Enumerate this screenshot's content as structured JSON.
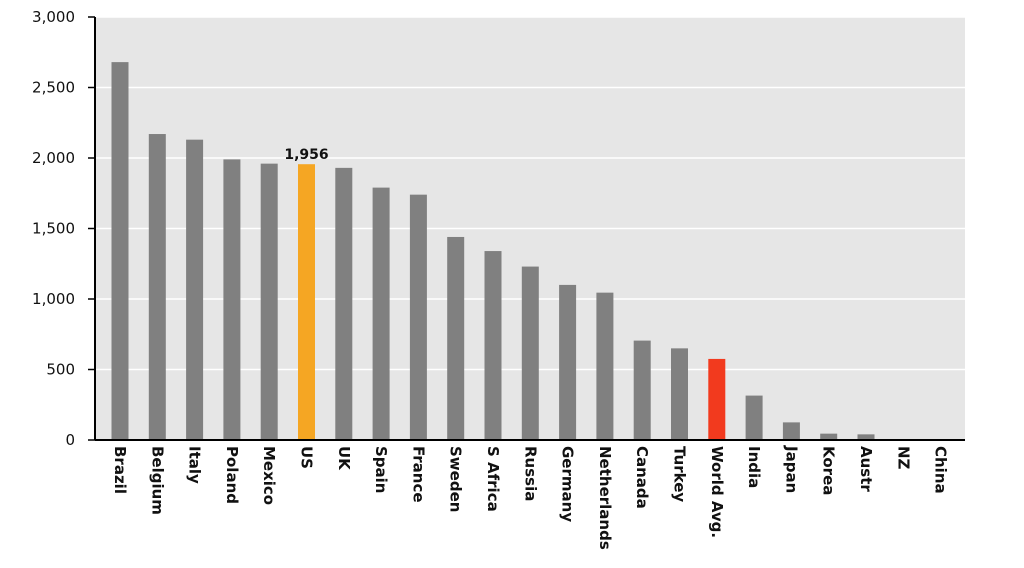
{
  "chart_data": {
    "type": "bar",
    "title": "",
    "xlabel": "",
    "ylabel": "",
    "ylim": [
      0,
      3000
    ],
    "yticks": [
      0,
      500,
      1000,
      1500,
      2000,
      2500,
      3000
    ],
    "ytick_labels": [
      "0",
      "500",
      "1,000",
      "1,500",
      "2,000",
      "2,500",
      "3,000"
    ],
    "grid": "horizontal",
    "categories": [
      "Brazil",
      "Belgium",
      "Italy",
      "Poland",
      "Mexico",
      "US",
      "UK",
      "Spain",
      "France",
      "Sweden",
      "S Africa",
      "Russia",
      "Germany",
      "Netherlands",
      "Canada",
      "Turkey",
      "World Avg.",
      "India",
      "Japan",
      "Korea",
      "Austr",
      "NZ",
      "China"
    ],
    "values": [
      2680,
      2170,
      2130,
      1990,
      1960,
      1956,
      1930,
      1790,
      1740,
      1440,
      1340,
      1230,
      1100,
      1045,
      705,
      650,
      575,
      315,
      125,
      45,
      40,
      0,
      0
    ],
    "data_labels": [
      {
        "category": "US",
        "text": "1,956"
      }
    ],
    "colors": {
      "default": "#808080",
      "highlight": "#F5A623",
      "average": "#F23A1E",
      "plot_background": "#E6E6E6",
      "gridline": "#FFFFFF",
      "axis": "#000000"
    },
    "highlight_category": "US",
    "average_category": "World Avg."
  }
}
